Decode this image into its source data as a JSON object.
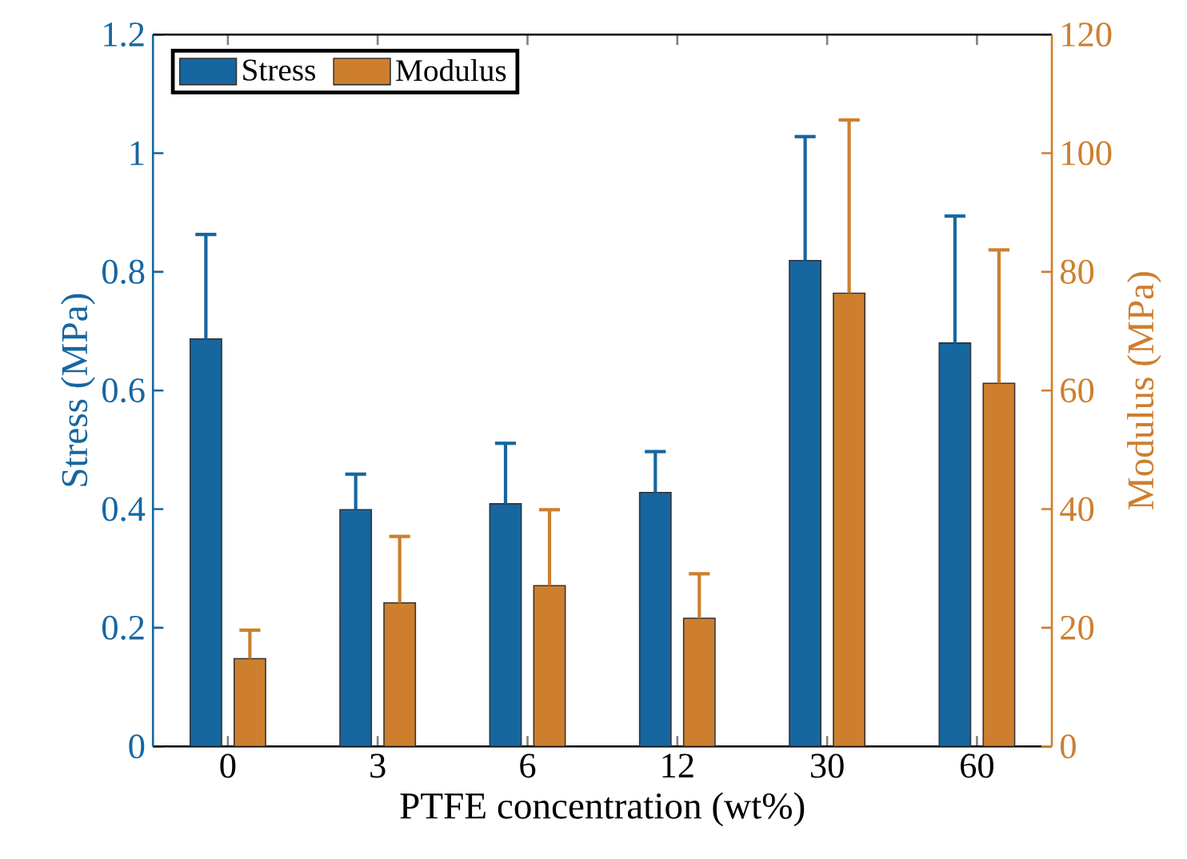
{
  "chart_data": {
    "type": "bar",
    "xlabel": "PTFE concentration (wt%)",
    "ylabel": "Stress (MPa)",
    "y2label": "Modulus (MPa)",
    "categories": [
      "0",
      "3",
      "6",
      "12",
      "30",
      "60"
    ],
    "series": [
      {
        "name": "Stress",
        "color": "#1666a0",
        "values": [
          0.687,
          0.399,
          0.409,
          0.428,
          0.819,
          0.68
        ],
        "errors": [
          [
            0.687,
            0.863
          ],
          [
            0.399,
            0.459
          ],
          [
            0.409,
            0.511
          ],
          [
            0.428,
            0.497
          ],
          [
            0.819,
            1.028
          ],
          [
            0.68,
            0.894
          ]
        ]
      },
      {
        "name": "Modulus",
        "color": "#cd7f2e",
        "axis": "y2",
        "values": [
          14.8,
          24.2,
          27.1,
          21.6,
          76.4,
          61.2
        ],
        "errors": [
          [
            14.8,
            19.6
          ],
          [
            24.2,
            35.4
          ],
          [
            27.1,
            39.9
          ],
          [
            21.6,
            29.1
          ],
          [
            76.4,
            105.6
          ],
          [
            61.2,
            83.7
          ]
        ]
      }
    ],
    "ylim": [
      0,
      1.2
    ],
    "yticks": [
      0,
      0.2,
      0.4,
      0.6,
      0.8,
      1,
      1.2
    ],
    "y2lim": [
      0,
      120
    ],
    "y2ticks": [
      0,
      20,
      40,
      60,
      80,
      100,
      120
    ],
    "legend": "top left",
    "grid": false
  }
}
